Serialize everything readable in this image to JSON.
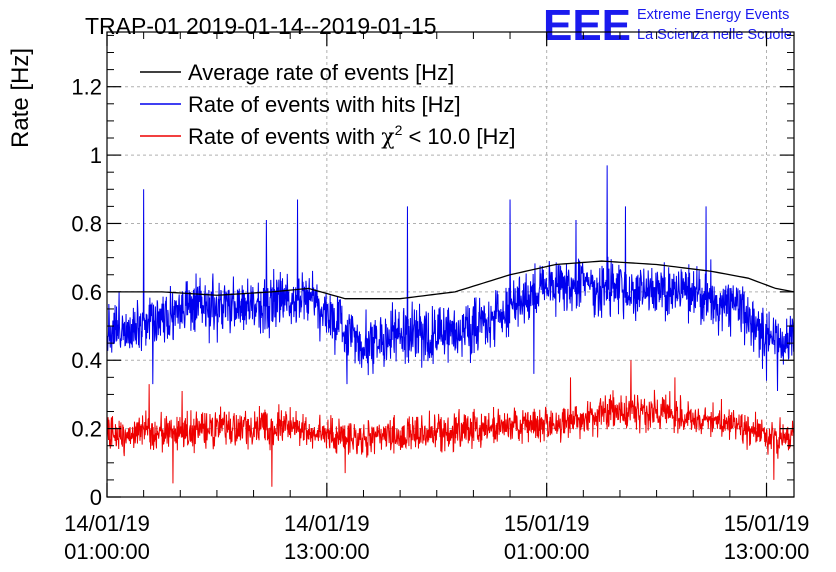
{
  "chart_data": {
    "type": "line",
    "title": "TRAP-01 2019-01-14--2019-01-15",
    "ylabel": "Rate [Hz]",
    "xlabel": "",
    "ylim": [
      0,
      1.36
    ],
    "y_ticks": [
      0,
      0.2,
      0.4,
      0.6,
      0.8,
      1,
      1.2
    ],
    "y_tick_labels": [
      "0",
      "0.2",
      "0.4",
      "0.6",
      "0.8",
      "1",
      "1.2"
    ],
    "x_range_hours": [
      0,
      37.5
    ],
    "x_ticks_hours": [
      0,
      12,
      24,
      36
    ],
    "x_tick_labels": [
      {
        "date": "14/01/19",
        "time": "01:00:00"
      },
      {
        "date": "14/01/19",
        "time": "13:00:00"
      },
      {
        "date": "15/01/19",
        "time": "01:00:00"
      },
      {
        "date": "15/01/19",
        "time": "13:00:00"
      }
    ],
    "grid": true,
    "legend_position": "top-left",
    "logo": {
      "text": "EEE",
      "line1": "Extreme Energy Events",
      "line2": "La Scienza nelle Scuole",
      "color": "#1a1aee"
    },
    "series": [
      {
        "name": "Average rate of events [Hz]",
        "legend": {
          "pre": "Average rate of events [Hz]",
          "chi": "",
          "sup": "",
          "post": ""
        },
        "color": "#000000",
        "style": "smooth",
        "x": [
          0,
          3,
          6,
          9,
          11,
          13,
          16,
          19,
          22,
          24.5,
          27,
          30,
          33,
          35,
          36.5,
          37.5
        ],
        "y": [
          0.6,
          0.6,
          0.59,
          0.6,
          0.61,
          0.58,
          0.58,
          0.6,
          0.65,
          0.68,
          0.69,
          0.68,
          0.66,
          0.64,
          0.61,
          0.6
        ]
      },
      {
        "name": "Rate of events with hits [Hz]",
        "legend": {
          "pre": "Rate of events with hits [Hz]",
          "chi": "",
          "sup": "",
          "post": ""
        },
        "color": "#0000ee",
        "style": "noisy",
        "x": [
          0,
          2,
          4,
          6,
          8,
          10,
          11,
          12,
          14,
          16,
          18,
          20,
          22,
          24,
          26,
          28,
          30,
          32,
          34,
          36,
          37.5
        ],
        "y": [
          0.49,
          0.51,
          0.55,
          0.55,
          0.56,
          0.58,
          0.6,
          0.53,
          0.45,
          0.47,
          0.47,
          0.5,
          0.55,
          0.62,
          0.62,
          0.6,
          0.6,
          0.6,
          0.56,
          0.48,
          0.45
        ],
        "noise_amplitude": 0.07,
        "spikes": [
          [
            2.0,
            0.9
          ],
          [
            8.7,
            0.81
          ],
          [
            10.4,
            0.87
          ],
          [
            16.4,
            0.85
          ],
          [
            22.0,
            0.87
          ],
          [
            25.6,
            0.81
          ],
          [
            27.3,
            0.97
          ],
          [
            28.3,
            0.85
          ],
          [
            32.7,
            0.85
          ],
          [
            2.5,
            0.33
          ],
          [
            13.1,
            0.33
          ],
          [
            23.3,
            0.36
          ],
          [
            36.6,
            0.31
          ],
          [
            36.0,
            0.34
          ]
        ]
      },
      {
        "name": "Rate of events with χ2 < 10.0 [Hz]",
        "legend": {
          "pre": "Rate of events with ",
          "chi": "χ",
          "sup": "2",
          "post": " < 10.0 [Hz]"
        },
        "color": "#ee0000",
        "style": "noisy",
        "x": [
          0,
          2,
          4,
          6,
          8,
          10,
          12,
          14,
          16,
          18,
          20,
          22,
          24,
          26,
          28,
          30,
          32,
          34,
          36,
          37.5
        ],
        "y": [
          0.18,
          0.19,
          0.19,
          0.2,
          0.2,
          0.21,
          0.18,
          0.17,
          0.18,
          0.19,
          0.2,
          0.21,
          0.21,
          0.23,
          0.25,
          0.25,
          0.23,
          0.22,
          0.18,
          0.17
        ],
        "noise_amplitude": 0.045,
        "spikes": [
          [
            2.3,
            0.33
          ],
          [
            4.1,
            0.31
          ],
          [
            28.6,
            0.4
          ],
          [
            31.0,
            0.35
          ],
          [
            25.3,
            0.35
          ],
          [
            3.6,
            0.04
          ],
          [
            9.0,
            0.03
          ],
          [
            13.0,
            0.07
          ],
          [
            36.4,
            0.05
          ]
        ]
      }
    ]
  }
}
